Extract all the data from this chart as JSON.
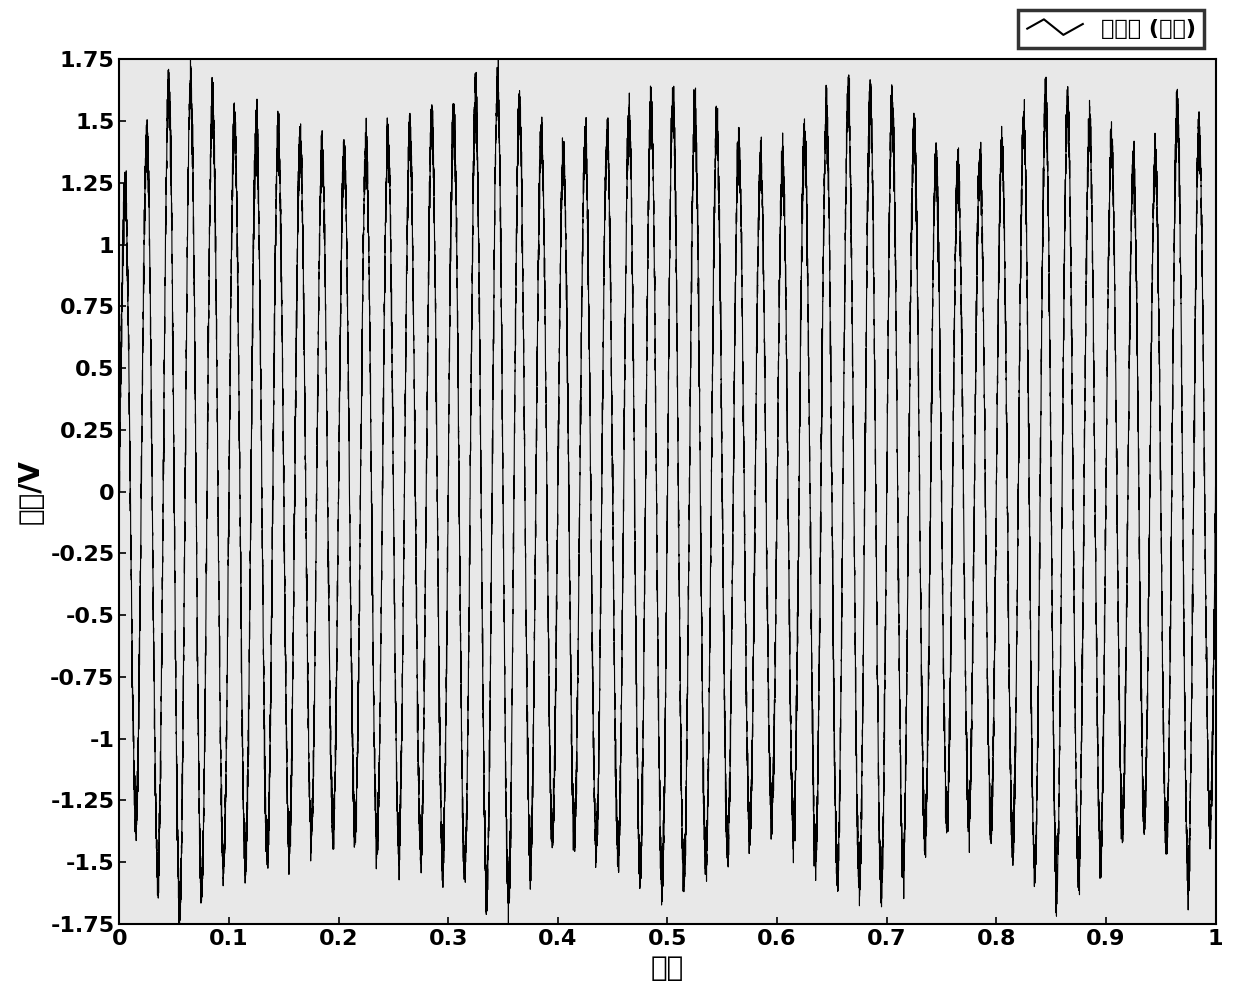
{
  "xlabel": "时间",
  "ylabel": "幅值/V",
  "legend_label": "信号源 (滤波)",
  "xlim": [
    0,
    1
  ],
  "ylim": [
    -1.75,
    1.75
  ],
  "yticks": [
    -1.75,
    -1.5,
    -1.25,
    -1.0,
    -0.75,
    -0.5,
    -0.25,
    0,
    0.25,
    0.5,
    0.75,
    1.0,
    1.25,
    1.5,
    1.75
  ],
  "ytick_labels": [
    "-1.75",
    "-1.5",
    "-1.25",
    "-1",
    "-0.75",
    "-0.5",
    "-0.25",
    "0",
    "0.25",
    "0.5",
    "0.75",
    "1",
    "1.25",
    "1.5",
    "1.75"
  ],
  "xticks": [
    0,
    0.1,
    0.2,
    0.3,
    0.4,
    0.5,
    0.6,
    0.7,
    0.8,
    0.9,
    1
  ],
  "xtick_labels": [
    "0",
    "0.1",
    "0.2",
    "0.3",
    "0.4",
    "0.5",
    "0.6",
    "0.7",
    "0.8",
    "0.9",
    "1"
  ],
  "line_color": "#000000",
  "background_color": "#ffffff",
  "plot_bg_color": "#e8e8e8",
  "freq": 50,
  "noise_level": 0.05,
  "seed": 42,
  "n_points": 20000,
  "xlabel_fontsize": 20,
  "ylabel_fontsize": 20,
  "tick_fontsize": 16,
  "legend_fontsize": 16,
  "line_width": 0.8,
  "amp_envelope": [
    1.15,
    1.7,
    1.5,
    1.35,
    1.5,
    1.65,
    1.35,
    1.45,
    1.6,
    1.45,
    1.3
  ],
  "amp_t": [
    0.0,
    0.05,
    0.1,
    0.2,
    0.3,
    0.35,
    0.4,
    0.45,
    0.5,
    0.55,
    0.6
  ],
  "amp_envelope2": [
    1.6,
    1.55,
    1.6,
    1.3,
    1.35,
    1.6,
    1.45,
    1.3,
    1.35,
    1.6,
    1.3
  ],
  "amp_t2": [
    0.6,
    0.65,
    0.7,
    0.75,
    0.8,
    0.85,
    0.9,
    0.92,
    0.95,
    0.97,
    1.0
  ]
}
